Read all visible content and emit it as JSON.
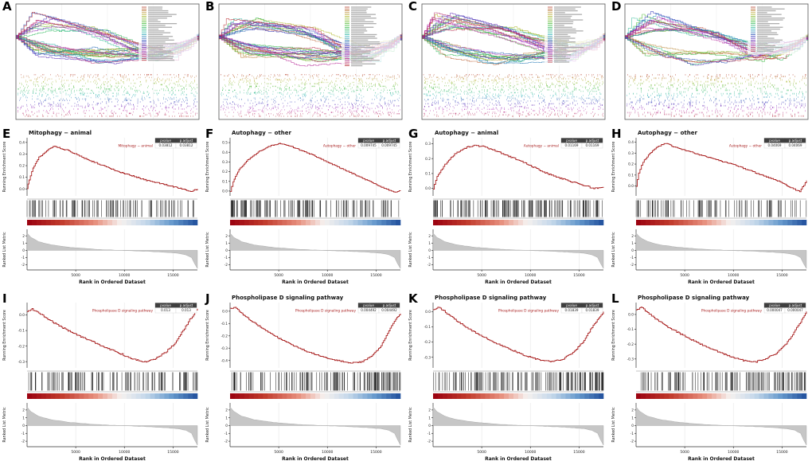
{
  "shared": {
    "xlabel": "Rank in Ordered Dataset",
    "ylabel_es": "Running Enrichment Score",
    "ylabel_metric": "Ranked List Metric",
    "x_ticks": [
      5000,
      10000,
      15000
    ],
    "x_max": 17500,
    "stats_header": [
      "pvalue",
      "p.adjust"
    ],
    "metric_ticks": [
      2,
      1,
      0,
      -1,
      -2
    ],
    "metric_range": [
      -2.7,
      2.9
    ],
    "metric_curve": [
      [
        0,
        2.4
      ],
      [
        400,
        1.8
      ],
      [
        1200,
        1.2
      ],
      [
        2500,
        0.75
      ],
      [
        4500,
        0.4
      ],
      [
        7000,
        0.15
      ],
      [
        9500,
        0.0
      ],
      [
        12000,
        -0.12
      ],
      [
        14000,
        -0.25
      ],
      [
        15500,
        -0.4
      ],
      [
        16300,
        -0.6
      ],
      [
        16900,
        -1.0
      ],
      [
        17200,
        -1.8
      ],
      [
        17500,
        -2.5
      ]
    ],
    "curve_color": "#a81e1e",
    "metric_fill": "#c6c6c6",
    "metric_stroke": "#9e9e9e",
    "tick_color": "#141414",
    "gradient_stops": [
      [
        0,
        "#99000f"
      ],
      [
        0.2,
        "#c0392b"
      ],
      [
        0.4,
        "#e78f7d"
      ],
      [
        0.55,
        "#f6f1ef"
      ],
      [
        0.7,
        "#c3d7ea"
      ],
      [
        0.85,
        "#6699cc"
      ],
      [
        1,
        "#1f4e9c"
      ]
    ]
  },
  "chart_data": [
    {
      "id": "A",
      "type": "multi_gsea",
      "n_sets": 30,
      "legend_entries": 30,
      "seed": 11
    },
    {
      "id": "B",
      "type": "multi_gsea",
      "n_sets": 33,
      "legend_entries": 33,
      "seed": 29
    },
    {
      "id": "C",
      "type": "multi_gsea",
      "n_sets": 31,
      "legend_entries": 31,
      "seed": 47
    },
    {
      "id": "D",
      "type": "multi_gsea",
      "n_sets": 25,
      "legend_entries": 25,
      "seed": 63
    },
    {
      "id": "E",
      "type": "gsea",
      "title": "Mitophagy − animal",
      "legend_label": "Mitophagy − animal",
      "pvalue": "0.03812",
      "p_adjust": "0.03812",
      "seed": 101,
      "tick_count": 110,
      "tick_dir": "pos",
      "es_ticks": [
        0.4,
        0.3,
        0.2,
        0.1,
        0.0
      ],
      "es_range": [
        -0.06,
        0.44
      ],
      "curve": [
        [
          0,
          0
        ],
        [
          200,
          0.08
        ],
        [
          600,
          0.18
        ],
        [
          1200,
          0.27
        ],
        [
          2000,
          0.33
        ],
        [
          2800,
          0.37
        ],
        [
          3400,
          0.35
        ],
        [
          4200,
          0.33
        ],
        [
          5000,
          0.3
        ],
        [
          6000,
          0.26
        ],
        [
          7500,
          0.21
        ],
        [
          9000,
          0.16
        ],
        [
          10500,
          0.12
        ],
        [
          12000,
          0.08
        ],
        [
          13500,
          0.05
        ],
        [
          15000,
          0.02
        ],
        [
          16000,
          0.0
        ],
        [
          16800,
          -0.02
        ],
        [
          17500,
          0.0
        ]
      ]
    },
    {
      "id": "F",
      "type": "gsea",
      "title": "Autophagy − other",
      "legend_label": "Autophagy − other",
      "pvalue": "0.009745",
      "p_adjust": "0.009745",
      "seed": 113,
      "tick_count": 130,
      "tick_dir": "pos",
      "es_ticks": [
        0.5,
        0.4,
        0.3,
        0.2,
        0.1,
        0.0
      ],
      "es_range": [
        -0.05,
        0.55
      ],
      "curve": [
        [
          0,
          0
        ],
        [
          300,
          0.1
        ],
        [
          900,
          0.22
        ],
        [
          1800,
          0.32
        ],
        [
          3000,
          0.41
        ],
        [
          4200,
          0.47
        ],
        [
          5200,
          0.49
        ],
        [
          6000,
          0.47
        ],
        [
          7000,
          0.43
        ],
        [
          8500,
          0.37
        ],
        [
          10000,
          0.3
        ],
        [
          11500,
          0.23
        ],
        [
          13000,
          0.16
        ],
        [
          14500,
          0.09
        ],
        [
          15800,
          0.03
        ],
        [
          16800,
          -0.01
        ],
        [
          17500,
          0.0
        ]
      ]
    },
    {
      "id": "G",
      "type": "gsea",
      "title": "Autophagy − animal",
      "legend_label": "Autophagy − animal",
      "pvalue": "0.01169",
      "p_adjust": "0.01169",
      "seed": 127,
      "tick_count": 150,
      "tick_dir": "pos",
      "es_ticks": [
        0.3,
        0.2,
        0.1,
        0.0
      ],
      "es_range": [
        -0.05,
        0.34
      ],
      "curve": [
        [
          0,
          0
        ],
        [
          400,
          0.08
        ],
        [
          1200,
          0.16
        ],
        [
          2200,
          0.23
        ],
        [
          3200,
          0.27
        ],
        [
          4200,
          0.29
        ],
        [
          5200,
          0.28
        ],
        [
          6500,
          0.25
        ],
        [
          8000,
          0.21
        ],
        [
          9500,
          0.17
        ],
        [
          11000,
          0.12
        ],
        [
          12500,
          0.08
        ],
        [
          14000,
          0.05
        ],
        [
          15500,
          0.02
        ],
        [
          16500,
          0.0
        ],
        [
          17500,
          0.01
        ]
      ]
    },
    {
      "id": "H",
      "type": "gsea",
      "title": "Autophagy − other",
      "legend_label": "Autophagy − other",
      "pvalue": "0.04069",
      "p_adjust": "0.04069",
      "seed": 139,
      "tick_count": 95,
      "tick_dir": "pos",
      "es_ticks": [
        0.4,
        0.3,
        0.2,
        0.1,
        0.0
      ],
      "es_range": [
        -0.09,
        0.44
      ],
      "curve": [
        [
          0,
          0
        ],
        [
          250,
          0.12
        ],
        [
          700,
          0.22
        ],
        [
          1400,
          0.3
        ],
        [
          2200,
          0.36
        ],
        [
          3000,
          0.39
        ],
        [
          3800,
          0.36
        ],
        [
          4800,
          0.33
        ],
        [
          6000,
          0.3
        ],
        [
          7500,
          0.26
        ],
        [
          9000,
          0.22
        ],
        [
          10500,
          0.18
        ],
        [
          12000,
          0.13
        ],
        [
          13500,
          0.08
        ],
        [
          15000,
          0.03
        ],
        [
          16000,
          -0.02
        ],
        [
          16800,
          -0.05
        ],
        [
          17500,
          0.05
        ]
      ]
    },
    {
      "id": "I",
      "type": "gsea",
      "title": "",
      "legend_label": "Phospholipase D signaling pathway",
      "pvalue": "0.013",
      "p_adjust": "0.013",
      "seed": 151,
      "tick_count": 120,
      "tick_dir": "neg",
      "es_ticks": [
        0.0,
        -0.1,
        -0.2,
        -0.3
      ],
      "es_range": [
        -0.34,
        0.08
      ],
      "curve": [
        [
          0,
          0.02
        ],
        [
          500,
          0.04
        ],
        [
          1200,
          0.01
        ],
        [
          2000,
          -0.02
        ],
        [
          3000,
          -0.06
        ],
        [
          4200,
          -0.1
        ],
        [
          5500,
          -0.14
        ],
        [
          7000,
          -0.18
        ],
        [
          8500,
          -0.22
        ],
        [
          10000,
          -0.26
        ],
        [
          11200,
          -0.29
        ],
        [
          12200,
          -0.3
        ],
        [
          13200,
          -0.28
        ],
        [
          14200,
          -0.24
        ],
        [
          15200,
          -0.18
        ],
        [
          16000,
          -0.1
        ],
        [
          16700,
          -0.03
        ],
        [
          17500,
          0.04
        ]
      ]
    },
    {
      "id": "J",
      "type": "gsea",
      "title": "Phospholipase D signaling pathway",
      "legend_label": "Phospholipase D signaling pathway",
      "pvalue": "0.004492",
      "p_adjust": "0.004492",
      "seed": 163,
      "tick_count": 140,
      "tick_dir": "neg",
      "es_ticks": [
        0.0,
        -0.1,
        -0.2,
        -0.3,
        -0.4
      ],
      "es_range": [
        -0.46,
        0.07
      ],
      "curve": [
        [
          0,
          0.02
        ],
        [
          500,
          0.03
        ],
        [
          1200,
          -0.02
        ],
        [
          2200,
          -0.08
        ],
        [
          3500,
          -0.15
        ],
        [
          5000,
          -0.22
        ],
        [
          6500,
          -0.28
        ],
        [
          8000,
          -0.33
        ],
        [
          9500,
          -0.37
        ],
        [
          11000,
          -0.4
        ],
        [
          12500,
          -0.42
        ],
        [
          13500,
          -0.41
        ],
        [
          14500,
          -0.37
        ],
        [
          15500,
          -0.28
        ],
        [
          16300,
          -0.16
        ],
        [
          17000,
          -0.06
        ],
        [
          17500,
          -0.02
        ]
      ]
    },
    {
      "id": "K",
      "type": "gsea",
      "title": "Phospholipase D signaling pathway",
      "legend_label": "Phospholipase D signaling pathway",
      "pvalue": "0.01839",
      "p_adjust": "0.01839",
      "seed": 179,
      "tick_count": 150,
      "tick_dir": "neg",
      "es_ticks": [
        0.0,
        -0.1,
        -0.2,
        -0.3
      ],
      "es_range": [
        -0.37,
        0.06
      ],
      "curve": [
        [
          0,
          0.01
        ],
        [
          600,
          0.03
        ],
        [
          1400,
          -0.01
        ],
        [
          2400,
          -0.06
        ],
        [
          3600,
          -0.11
        ],
        [
          5000,
          -0.16
        ],
        [
          6500,
          -0.21
        ],
        [
          8000,
          -0.25
        ],
        [
          9500,
          -0.29
        ],
        [
          11000,
          -0.32
        ],
        [
          12300,
          -0.33
        ],
        [
          13400,
          -0.31
        ],
        [
          14500,
          -0.26
        ],
        [
          15500,
          -0.19
        ],
        [
          16300,
          -0.1
        ],
        [
          17000,
          -0.04
        ],
        [
          17500,
          0.0
        ]
      ]
    },
    {
      "id": "L",
      "type": "gsea",
      "title": "Phospholipase D signaling pathway",
      "legend_label": "Phospholipase D signaling pathway",
      "pvalue": "0.000047",
      "p_adjust": "0.000047",
      "seed": 191,
      "tick_count": 130,
      "tick_dir": "neg",
      "es_ticks": [
        0.0,
        -0.1,
        -0.2,
        -0.3
      ],
      "es_range": [
        -0.36,
        0.08
      ],
      "curve": [
        [
          0,
          0.03
        ],
        [
          500,
          0.05
        ],
        [
          1200,
          0.01
        ],
        [
          2200,
          -0.04
        ],
        [
          3400,
          -0.09
        ],
        [
          4800,
          -0.14
        ],
        [
          6300,
          -0.19
        ],
        [
          8000,
          -0.24
        ],
        [
          9500,
          -0.28
        ],
        [
          11000,
          -0.31
        ],
        [
          12200,
          -0.32
        ],
        [
          13300,
          -0.3
        ],
        [
          14400,
          -0.26
        ],
        [
          15400,
          -0.2
        ],
        [
          16200,
          -0.12
        ],
        [
          16900,
          -0.05
        ],
        [
          17500,
          0.02
        ]
      ]
    }
  ]
}
